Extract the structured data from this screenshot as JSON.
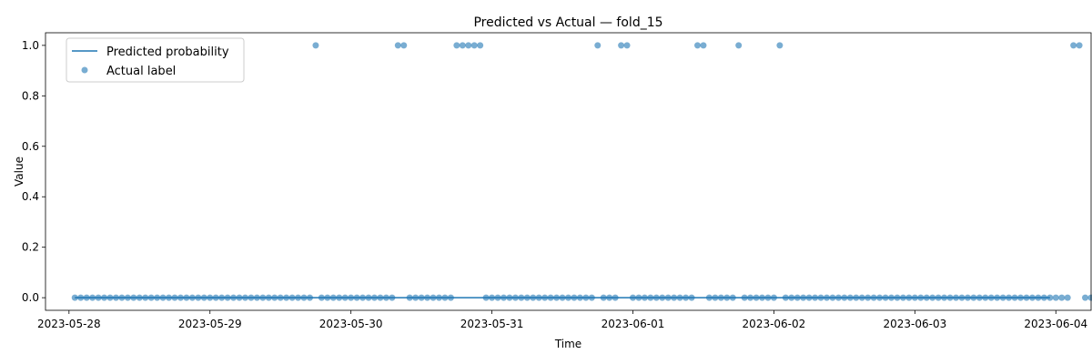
{
  "colors": {
    "line": "#1f77b4",
    "points": "#1f77b4",
    "axis": "#000000",
    "background": "#ffffff"
  },
  "chart_data": {
    "type": "scatter",
    "title": "Predicted vs Actual — fold_15",
    "xlabel": "Time",
    "ylabel": "Value",
    "x_type": "datetime",
    "xlim": [
      "2023-05-27T20:00",
      "2023-06-04T06:00"
    ],
    "ylim": [
      -0.05,
      1.05
    ],
    "x_ticks": [
      "2023-05-28",
      "2023-05-29",
      "2023-05-30",
      "2023-05-31",
      "2023-06-01",
      "2023-06-02",
      "2023-06-03",
      "2023-06-04"
    ],
    "y_ticks": [
      "0.0",
      "0.2",
      "0.4",
      "0.6",
      "0.8",
      "1.0"
    ],
    "legend": {
      "position": "upper-left",
      "entries": [
        "Predicted probability",
        "Actual label"
      ]
    },
    "series": [
      {
        "name": "Predicted probability",
        "kind": "line",
        "x": [
          "2023-05-28T01:00",
          "2023-06-03T23:00"
        ],
        "y": [
          0.0,
          0.0
        ]
      },
      {
        "name": "Actual label",
        "kind": "scatter",
        "x_start": "2023-05-28T01:00",
        "x_step_hours": 1,
        "y": [
          0,
          0,
          0,
          0,
          0,
          0,
          0,
          0,
          0,
          0,
          0,
          0,
          0,
          0,
          0,
          0,
          0,
          0,
          0,
          0,
          0,
          0,
          0,
          0,
          0,
          0,
          0,
          0,
          0,
          0,
          0,
          0,
          0,
          0,
          0,
          0,
          0,
          0,
          0,
          0,
          0,
          1,
          0,
          0,
          0,
          0,
          0,
          0,
          0,
          0,
          0,
          0,
          0,
          0,
          0,
          1,
          1,
          0,
          0,
          0,
          0,
          0,
          0,
          0,
          0,
          1,
          1,
          1,
          1,
          1,
          0,
          0,
          0,
          0,
          0,
          0,
          0,
          0,
          0,
          0,
          0,
          0,
          0,
          0,
          0,
          0,
          0,
          0,
          0,
          1,
          0,
          0,
          0,
          1,
          1,
          0,
          0,
          0,
          0,
          0,
          0,
          0,
          0,
          0,
          0,
          0,
          1,
          1,
          0,
          0,
          0,
          0,
          0,
          1,
          0,
          0,
          0,
          0,
          0,
          0,
          1,
          0,
          0,
          0,
          0,
          0,
          0,
          0,
          0,
          0,
          0,
          0,
          0,
          0,
          0,
          0,
          0,
          0,
          0,
          0,
          0,
          0,
          0,
          0,
          0,
          0,
          0,
          0,
          0,
          0,
          0,
          0,
          0,
          0,
          0,
          0,
          0,
          0,
          0,
          0,
          0,
          0,
          0,
          0,
          0,
          0,
          0,
          0,
          0,
          0,
          1,
          1,
          0,
          0,
          0,
          0
        ]
      }
    ]
  }
}
